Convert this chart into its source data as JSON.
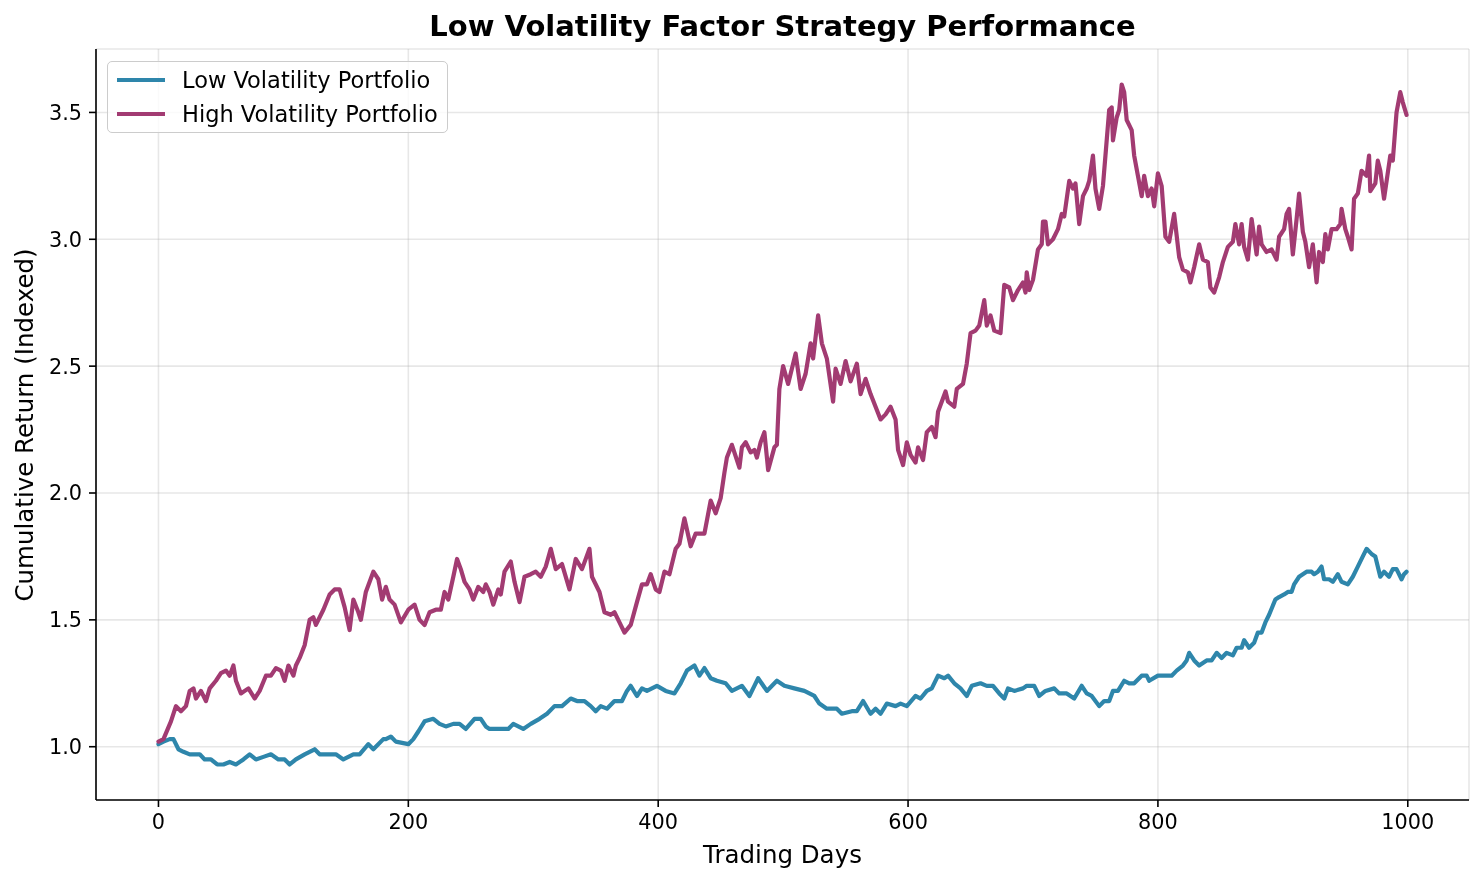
{
  "chart_data": {
    "type": "line",
    "title": "Low Volatility Factor Strategy Performance",
    "xlabel": "Trading Days",
    "ylabel": "Cumulative Return (Indexed)",
    "xlim": [
      -50,
      1049
    ],
    "xticks": [
      0,
      200,
      400,
      600,
      800,
      1000
    ],
    "ylim": [
      0.79,
      3.75
    ],
    "yticks": [
      {
        "value": 1,
        "label": "1.0"
      },
      1.5,
      {
        "value": 2,
        "label": "2.0"
      },
      2.5,
      {
        "value": 3,
        "label": "3.0"
      },
      3.5
    ],
    "grid": true,
    "legend": "top left",
    "series": [
      {
        "name": "Low Volatility Portfolio",
        "color": "#2e86ab",
        "x": [
          0,
          4,
          9,
          12,
          16,
          20,
          25,
          29,
          33,
          37,
          42,
          47,
          52,
          57,
          62,
          68,
          73,
          78,
          84,
          90,
          96,
          101,
          105,
          110,
          117,
          125,
          129,
          137,
          142,
          148,
          156,
          161,
          168,
          172,
          180,
          182,
          186,
          190,
          200,
          204,
          208,
          213,
          220,
          225,
          230,
          236,
          241,
          246,
          253,
          258,
          262,
          265,
          273,
          280,
          284,
          292,
          298,
          305,
          311,
          317,
          323,
          330,
          335,
          341,
          346,
          350,
          354,
          359,
          365,
          371,
          375,
          378,
          383,
          387,
          391,
          399,
          406,
          413,
          418,
          423,
          429,
          433,
          437,
          442,
          447,
          454,
          459,
          467,
          473,
          477,
          480,
          487,
          495,
          501,
          509,
          517,
          525,
          529,
          535,
          543,
          547,
          555,
          559,
          564,
          570,
          574,
          578,
          583,
          590,
          594,
          599,
          606,
          610,
          615,
          619,
          624,
          629,
          632,
          637,
          642,
          647,
          651,
          658,
          663,
          668,
          673,
          677,
          680,
          685,
          692,
          695,
          701,
          705,
          710,
          717,
          721,
          727,
          733,
          739,
          743,
          747,
          753,
          757,
          761,
          764,
          768,
          773,
          777,
          781,
          787,
          791,
          793,
          800,
          805,
          811,
          815,
          820,
          823,
          825,
          829,
          833,
          839,
          843,
          847,
          851,
          855,
          860,
          863,
          867,
          869,
          873,
          877,
          880,
          883,
          886,
          889,
          894,
          897,
          901,
          904,
          907,
          909,
          913,
          919,
          923,
          925,
          928,
          931,
          933,
          937,
          940,
          944,
          947,
          952,
          956,
          960,
          964,
          967,
          971,
          974,
          978,
          981,
          985,
          988,
          991,
          995,
          997,
          999
        ],
        "values": [
          1.01,
          1.02,
          1.03,
          1.03,
          0.99,
          0.98,
          0.97,
          0.97,
          0.97,
          0.95,
          0.95,
          0.93,
          0.93,
          0.94,
          0.93,
          0.95,
          0.97,
          0.95,
          0.96,
          0.97,
          0.95,
          0.95,
          0.93,
          0.95,
          0.97,
          0.99,
          0.97,
          0.97,
          0.97,
          0.95,
          0.97,
          0.97,
          1.01,
          0.99,
          1.03,
          1.03,
          1.04,
          1.02,
          1.01,
          1.03,
          1.06,
          1.1,
          1.11,
          1.09,
          1.08,
          1.09,
          1.09,
          1.07,
          1.11,
          1.11,
          1.08,
          1.07,
          1.07,
          1.07,
          1.09,
          1.07,
          1.09,
          1.11,
          1.13,
          1.16,
          1.16,
          1.19,
          1.18,
          1.18,
          1.16,
          1.14,
          1.16,
          1.15,
          1.18,
          1.18,
          1.22,
          1.24,
          1.2,
          1.23,
          1.22,
          1.24,
          1.22,
          1.21,
          1.25,
          1.3,
          1.32,
          1.28,
          1.31,
          1.27,
          1.26,
          1.25,
          1.22,
          1.24,
          1.2,
          1.24,
          1.27,
          1.22,
          1.26,
          1.24,
          1.23,
          1.22,
          1.2,
          1.17,
          1.15,
          1.15,
          1.13,
          1.14,
          1.14,
          1.18,
          1.13,
          1.15,
          1.13,
          1.17,
          1.16,
          1.17,
          1.16,
          1.2,
          1.19,
          1.22,
          1.23,
          1.28,
          1.27,
          1.28,
          1.25,
          1.23,
          1.2,
          1.24,
          1.25,
          1.24,
          1.24,
          1.21,
          1.19,
          1.23,
          1.22,
          1.23,
          1.24,
          1.24,
          1.2,
          1.22,
          1.23,
          1.21,
          1.21,
          1.19,
          1.24,
          1.21,
          1.2,
          1.16,
          1.18,
          1.18,
          1.22,
          1.22,
          1.26,
          1.25,
          1.25,
          1.28,
          1.28,
          1.26,
          1.28,
          1.28,
          1.28,
          1.3,
          1.32,
          1.34,
          1.37,
          1.34,
          1.32,
          1.34,
          1.34,
          1.37,
          1.35,
          1.37,
          1.36,
          1.39,
          1.39,
          1.42,
          1.39,
          1.41,
          1.45,
          1.45,
          1.49,
          1.52,
          1.58,
          1.59,
          1.6,
          1.61,
          1.61,
          1.64,
          1.67,
          1.69,
          1.69,
          1.68,
          1.69,
          1.71,
          1.66,
          1.66,
          1.65,
          1.68,
          1.65,
          1.64,
          1.67,
          1.71,
          1.75,
          1.78,
          1.76,
          1.75,
          1.67,
          1.69,
          1.67,
          1.7,
          1.7,
          1.66,
          1.68,
          1.69
        ]
      },
      {
        "name": "High Volatility Portfolio",
        "color": "#a23b72",
        "x": [
          0,
          4,
          10,
          14,
          18,
          22,
          25,
          28,
          30,
          34,
          38,
          41,
          46,
          50,
          54,
          57,
          60,
          62,
          66,
          72,
          77,
          81,
          86,
          90,
          94,
          98,
          101,
          104,
          108,
          110,
          113,
          117,
          121,
          124,
          126,
          132,
          137,
          141,
          145,
          149,
          153,
          156,
          160,
          162,
          166,
          172,
          176,
          179,
          182,
          185,
          189,
          194,
          200,
          205,
          209,
          213,
          217,
          222,
          226,
          229,
          232,
          236,
          239,
          242,
          245,
          249,
          252,
          256,
          260,
          262,
          265,
          268,
          272,
          274,
          277,
          282,
          285,
          289,
          293,
          298,
          302,
          306,
          310,
          314,
          318,
          323,
          329,
          334,
          339,
          345,
          347,
          353,
          357,
          362,
          365,
          369,
          373,
          378,
          383,
          387,
          391,
          394,
          398,
          401,
          405,
          409,
          414,
          417,
          421,
          426,
          430,
          434,
          437,
          442,
          446,
          450,
          453,
          455,
          459,
          465,
          467,
          470,
          474,
          477,
          479,
          482,
          485,
          488,
          493,
          495,
          497,
          500,
          504,
          510,
          514,
          518,
          522,
          524,
          528,
          531,
          535,
          540,
          542,
          546,
          550,
          554,
          559,
          562,
          566,
          570,
          574,
          578,
          582,
          586,
          590,
          592,
          596,
          599,
          602,
          606,
          608,
          612,
          615,
          619,
          622,
          624,
          630,
          632,
          637,
          639,
          644,
          647,
          650,
          654,
          657,
          661,
          663,
          666,
          669,
          674,
          677,
          681,
          684,
          688,
          692,
          694,
          695,
          697,
          700,
          704,
          707,
          708,
          710,
          712,
          716,
          720,
          723,
          725,
          729,
          732,
          734,
          737,
          740,
          743,
          745,
          748,
          750,
          753,
          756,
          761,
          763,
          764,
          767,
          769,
          771,
          773,
          775,
          779,
          781,
          784,
          787,
          789,
          792,
          795,
          797,
          800,
          803,
          806,
          809,
          813,
          817,
          820,
          824,
          826,
          829,
          833,
          836,
          840,
          842,
          845,
          849,
          852,
          856,
          860,
          862,
          865,
          867,
          869,
          872,
          875,
          877,
          879,
          881,
          883,
          887,
          891,
          895,
          897,
          901,
          903,
          905,
          908,
          911,
          913,
          916,
          918,
          921,
          924,
          927,
          929,
          932,
          934,
          936,
          939,
          943,
          946,
          947,
          950,
          952,
          955,
          957,
          960,
          963,
          967,
          969,
          970,
          974,
          976,
          978,
          981,
          986,
          988,
          991,
          994,
          996,
          999
        ],
        "values": [
          1.02,
          1.03,
          1.1,
          1.16,
          1.14,
          1.16,
          1.22,
          1.23,
          1.19,
          1.22,
          1.18,
          1.23,
          1.26,
          1.29,
          1.3,
          1.28,
          1.32,
          1.26,
          1.21,
          1.23,
          1.19,
          1.22,
          1.28,
          1.28,
          1.31,
          1.3,
          1.26,
          1.32,
          1.28,
          1.32,
          1.35,
          1.4,
          1.5,
          1.51,
          1.48,
          1.54,
          1.6,
          1.62,
          1.62,
          1.55,
          1.46,
          1.58,
          1.53,
          1.5,
          1.61,
          1.69,
          1.66,
          1.58,
          1.63,
          1.58,
          1.56,
          1.49,
          1.54,
          1.56,
          1.5,
          1.48,
          1.53,
          1.54,
          1.54,
          1.61,
          1.58,
          1.67,
          1.74,
          1.7,
          1.65,
          1.62,
          1.58,
          1.63,
          1.61,
          1.64,
          1.61,
          1.56,
          1.62,
          1.6,
          1.69,
          1.73,
          1.65,
          1.57,
          1.67,
          1.68,
          1.69,
          1.67,
          1.71,
          1.78,
          1.7,
          1.72,
          1.62,
          1.74,
          1.7,
          1.78,
          1.67,
          1.61,
          1.53,
          1.52,
          1.53,
          1.49,
          1.45,
          1.48,
          1.57,
          1.64,
          1.64,
          1.68,
          1.62,
          1.61,
          1.69,
          1.68,
          1.78,
          1.8,
          1.9,
          1.79,
          1.84,
          1.84,
          1.84,
          1.97,
          1.92,
          1.98,
          2.08,
          2.14,
          2.19,
          2.1,
          2.18,
          2.2,
          2.16,
          2.17,
          2.14,
          2.2,
          2.24,
          2.09,
          2.18,
          2.19,
          2.41,
          2.5,
          2.43,
          2.55,
          2.41,
          2.47,
          2.59,
          2.53,
          2.7,
          2.59,
          2.53,
          2.36,
          2.49,
          2.43,
          2.52,
          2.44,
          2.51,
          2.39,
          2.45,
          2.39,
          2.34,
          2.29,
          2.31,
          2.34,
          2.29,
          2.17,
          2.11,
          2.2,
          2.15,
          2.12,
          2.18,
          2.13,
          2.24,
          2.26,
          2.22,
          2.32,
          2.4,
          2.36,
          2.34,
          2.41,
          2.43,
          2.51,
          2.63,
          2.64,
          2.66,
          2.76,
          2.66,
          2.7,
          2.64,
          2.63,
          2.82,
          2.81,
          2.76,
          2.8,
          2.83,
          2.79,
          2.87,
          2.8,
          2.84,
          2.96,
          2.98,
          3.07,
          3.07,
          2.98,
          3.0,
          3.04,
          3.1,
          3.09,
          3.23,
          3.2,
          3.22,
          3.06,
          3.17,
          3.2,
          3.23,
          3.33,
          3.2,
          3.12,
          3.21,
          3.51,
          3.52,
          3.39,
          3.48,
          3.51,
          3.61,
          3.58,
          3.47,
          3.43,
          3.33,
          3.25,
          3.17,
          3.25,
          3.17,
          3.2,
          3.13,
          3.26,
          3.21,
          3.01,
          2.99,
          3.1,
          2.93,
          2.88,
          2.87,
          2.83,
          2.89,
          2.98,
          2.92,
          2.91,
          2.81,
          2.79,
          2.85,
          2.91,
          2.97,
          2.99,
          3.06,
          2.98,
          3.06,
          2.97,
          2.92,
          3.08,
          3.01,
          2.94,
          3.05,
          2.98,
          2.95,
          2.96,
          2.92,
          3.01,
          3.04,
          3.1,
          3.12,
          2.94,
          3.08,
          3.18,
          3.03,
          2.99,
          2.89,
          2.98,
          2.83,
          2.95,
          2.91,
          3.02,
          2.96,
          3.04,
          3.04,
          3.06,
          3.12,
          3.04,
          3.01,
          2.96,
          3.16,
          3.18,
          3.27,
          3.25,
          3.33,
          3.19,
          3.22,
          3.31,
          3.27,
          3.16,
          3.33,
          3.31,
          3.5,
          3.58,
          3.54,
          3.49
        ]
      }
    ]
  }
}
